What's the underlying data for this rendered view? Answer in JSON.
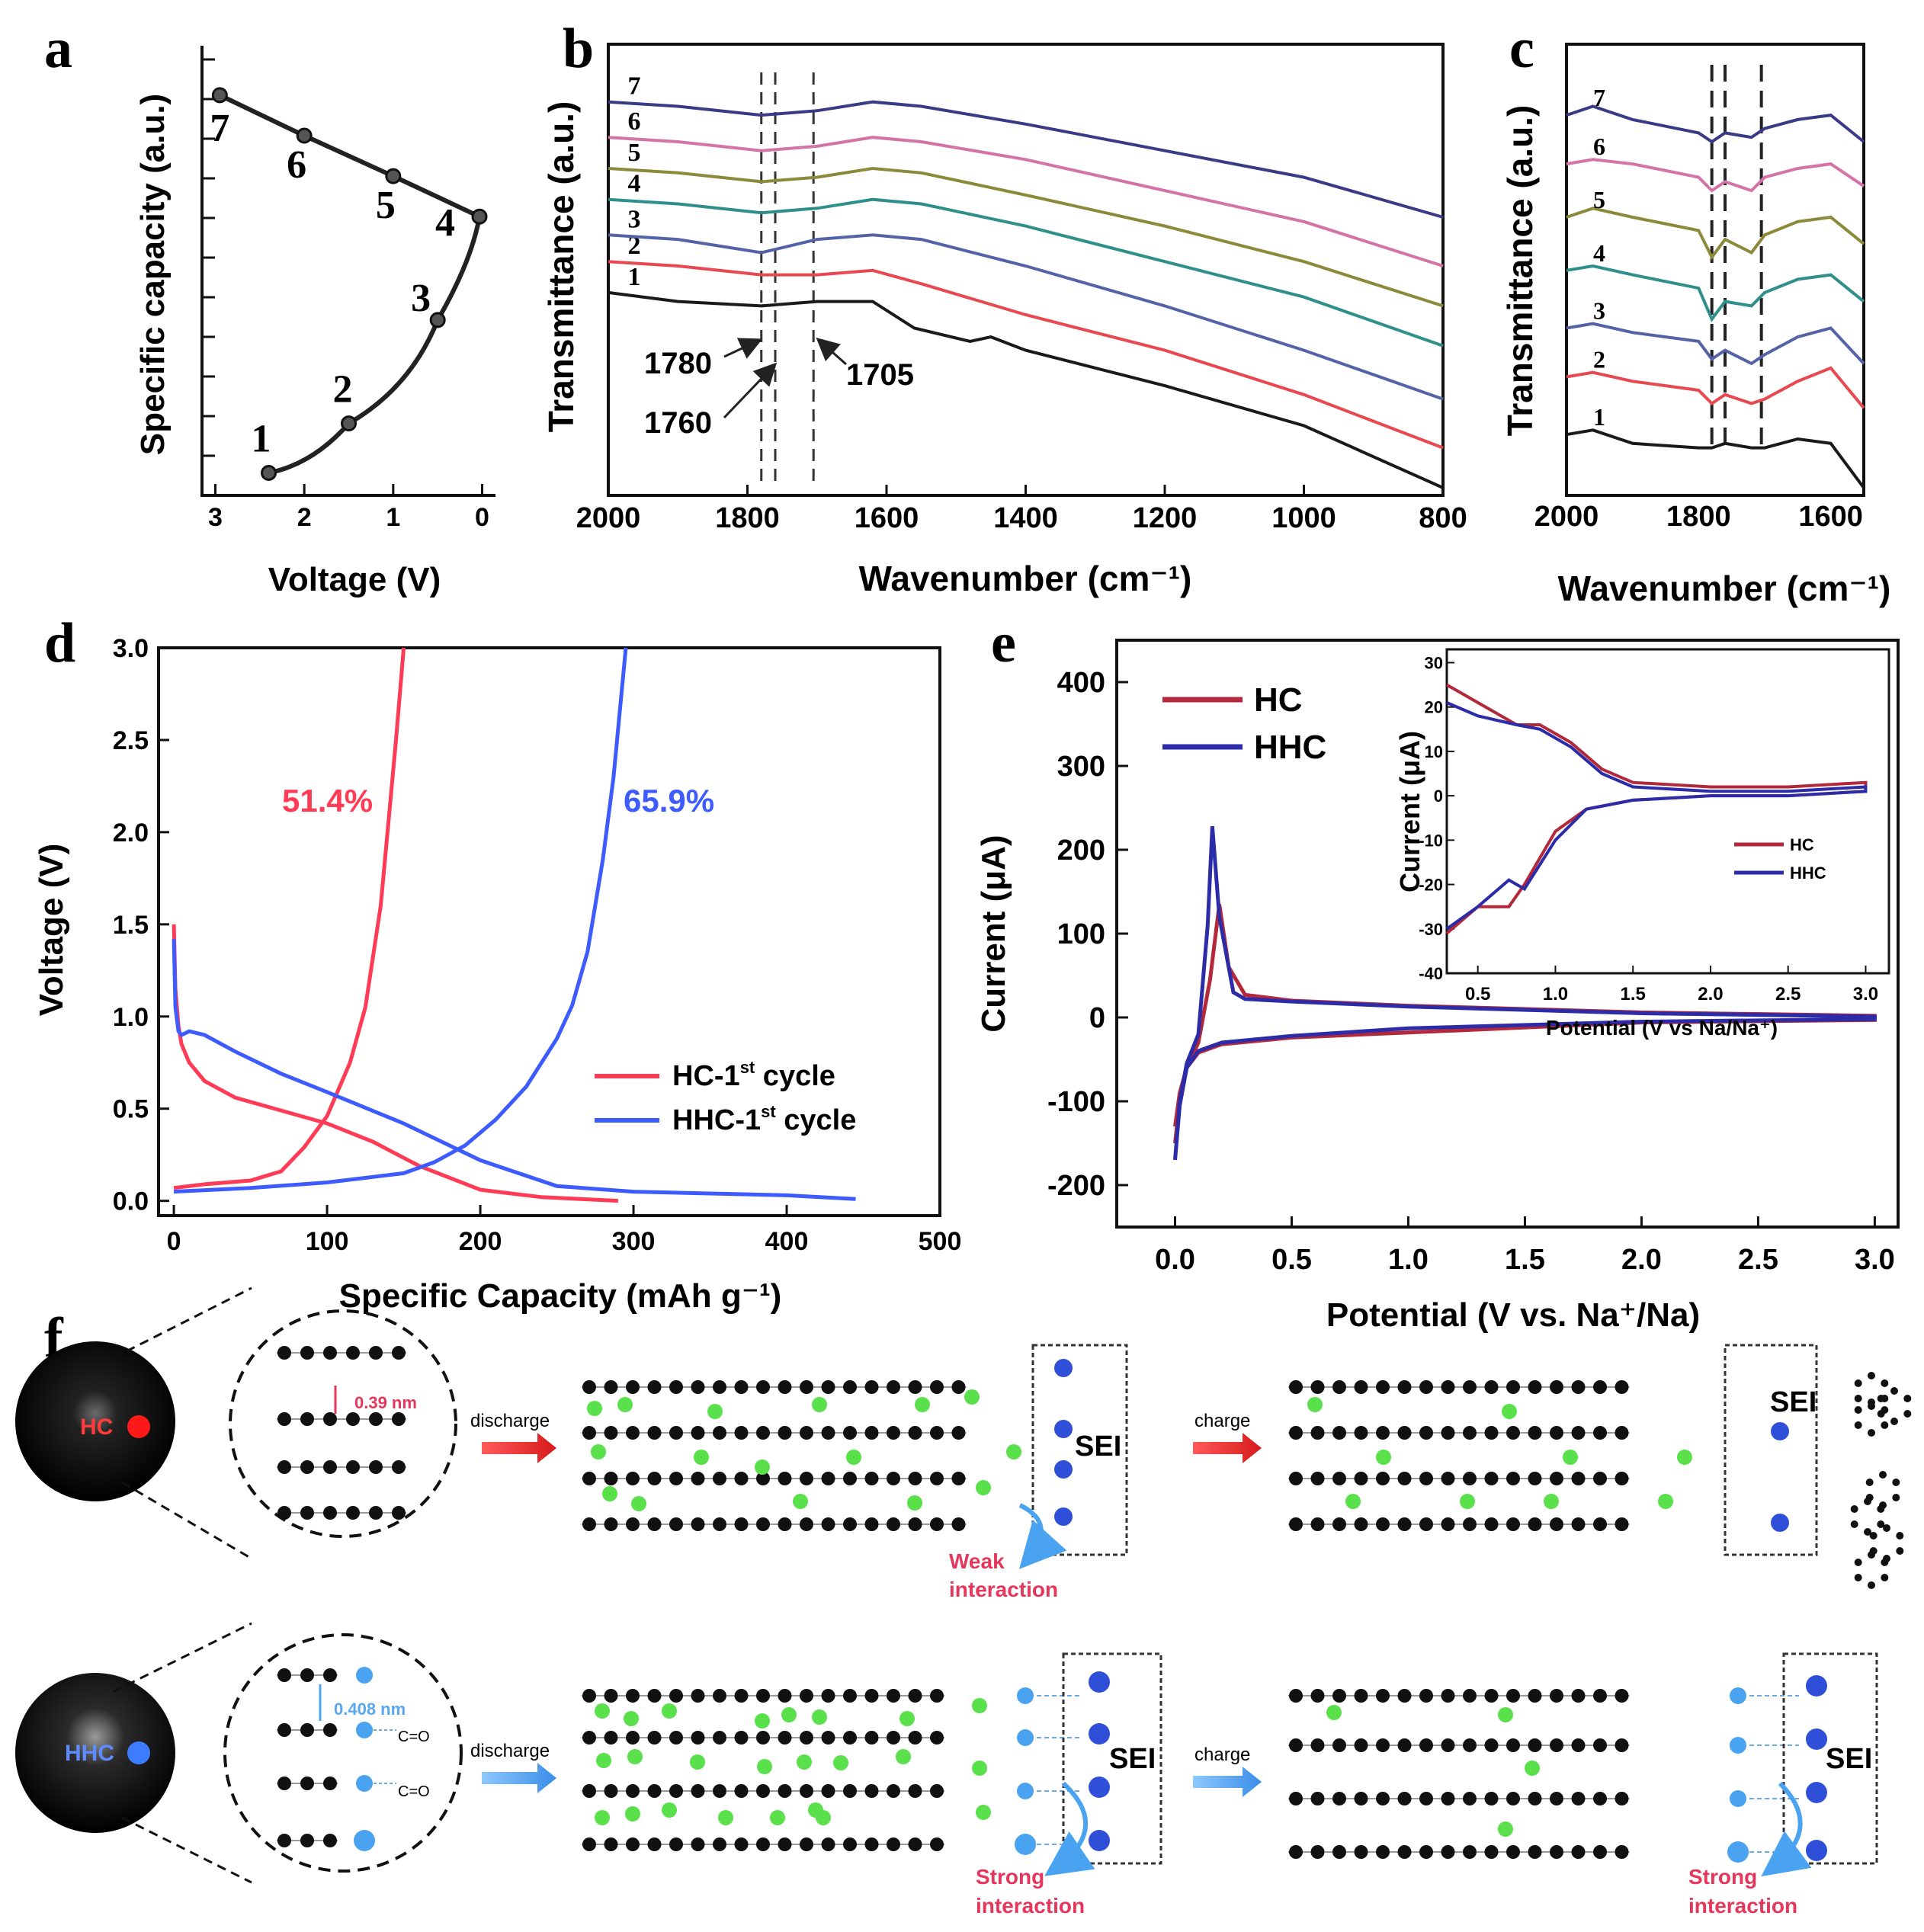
{
  "panel_labels": [
    "a",
    "b",
    "c",
    "d",
    "e",
    "f"
  ],
  "colors": {
    "black": "#1a1a1a",
    "red": "#e8484f",
    "blue": "#5463a8",
    "olive": "#8b8a3a",
    "teal": "#2f8f8a",
    "pink": "#d474a6",
    "navy": "#3a3a86",
    "hc_red": "#ff3b55",
    "hhc_blue": "#3d5bff",
    "cv_red": "#b3283a",
    "cv_blue": "#2c2ca8",
    "green": "#59e04a",
    "sei_blue": "#2f4fd8",
    "light_blue": "#49a3f0"
  },
  "chart_data": [
    {
      "id": "a",
      "type": "line",
      "title": "",
      "xlabel": "Voltage (V)",
      "ylabel": "Specific capacity (a.u.)",
      "xlim": [
        3.15,
        -0.15
      ],
      "ylim": [
        0,
        1
      ],
      "xticks": [
        3,
        2,
        1,
        0
      ],
      "xtick_labels": [
        "3",
        "2",
        "1",
        "0"
      ],
      "points": [
        {
          "label": "1",
          "x": 2.4,
          "y": 0.05
        },
        {
          "label": "2",
          "x": 1.5,
          "y": 0.16
        },
        {
          "label": "3",
          "x": 0.5,
          "y": 0.39
        },
        {
          "label": "4",
          "x": 0.03,
          "y": 0.62
        },
        {
          "label": "5",
          "x": 1.0,
          "y": 0.71
        },
        {
          "label": "6",
          "x": 2.0,
          "y": 0.8
        },
        {
          "label": "7",
          "x": 2.95,
          "y": 0.89
        }
      ]
    },
    {
      "id": "b",
      "type": "line",
      "xlabel": "Wavenumber (cm⁻¹)",
      "ylabel": "Transmittance (a.u.)",
      "xlim": [
        2000,
        800
      ],
      "ylim": [
        0,
        1
      ],
      "xticks": [
        2000,
        1800,
        1600,
        1400,
        1200,
        1000,
        800
      ],
      "xtick_labels": [
        "2000",
        "1800",
        "1600",
        "1400",
        "1200",
        "1000",
        "800"
      ],
      "vlines": [
        1780,
        1760,
        1705
      ],
      "annotations": [
        "1780",
        "1760",
        "1705"
      ],
      "series": [
        {
          "name": "1",
          "x": [
            2000,
            1900,
            1780,
            1700,
            1620,
            1560,
            1480,
            1450,
            1400,
            1200,
            1000,
            800
          ],
          "y": [
            0.44,
            0.42,
            0.41,
            0.42,
            0.42,
            0.36,
            0.33,
            0.34,
            0.31,
            0.23,
            0.14,
            0.0
          ]
        },
        {
          "name": "2",
          "x": [
            2000,
            1900,
            1780,
            1700,
            1620,
            1550,
            1400,
            1200,
            1000,
            800
          ],
          "y": [
            0.51,
            0.5,
            0.48,
            0.48,
            0.49,
            0.46,
            0.39,
            0.31,
            0.21,
            0.09
          ]
        },
        {
          "name": "3",
          "x": [
            2000,
            1900,
            1780,
            1700,
            1620,
            1550,
            1400,
            1200,
            1000,
            800
          ],
          "y": [
            0.57,
            0.56,
            0.53,
            0.56,
            0.57,
            0.56,
            0.5,
            0.41,
            0.31,
            0.2
          ]
        },
        {
          "name": "4",
          "x": [
            2000,
            1900,
            1780,
            1700,
            1620,
            1550,
            1400,
            1200,
            1000,
            800
          ],
          "y": [
            0.65,
            0.64,
            0.62,
            0.63,
            0.65,
            0.64,
            0.59,
            0.51,
            0.43,
            0.32
          ]
        },
        {
          "name": "5",
          "x": [
            2000,
            1900,
            1780,
            1700,
            1620,
            1550,
            1400,
            1200,
            1000,
            800
          ],
          "y": [
            0.72,
            0.71,
            0.69,
            0.7,
            0.72,
            0.71,
            0.66,
            0.59,
            0.51,
            0.41
          ]
        },
        {
          "name": "6",
          "x": [
            2000,
            1900,
            1780,
            1700,
            1620,
            1550,
            1400,
            1200,
            1000,
            800
          ],
          "y": [
            0.79,
            0.78,
            0.76,
            0.77,
            0.79,
            0.78,
            0.74,
            0.67,
            0.6,
            0.5
          ]
        },
        {
          "name": "7",
          "x": [
            2000,
            1900,
            1780,
            1700,
            1620,
            1550,
            1400,
            1200,
            1000,
            800
          ],
          "y": [
            0.87,
            0.86,
            0.84,
            0.85,
            0.87,
            0.86,
            0.82,
            0.76,
            0.7,
            0.61
          ]
        }
      ]
    },
    {
      "id": "c",
      "type": "line",
      "xlabel": "Wavenumber (cm⁻¹)",
      "ylabel": "Transmittance (a.u.)",
      "xlim": [
        2000,
        1550
      ],
      "ylim": [
        0,
        1
      ],
      "xticks": [
        2000,
        1800,
        1600
      ],
      "xtick_labels": [
        "2000",
        "1800",
        "1600"
      ],
      "vlines": [
        1780,
        1760,
        1705
      ],
      "series": [
        {
          "name": "1",
          "x": [
            2000,
            1960,
            1900,
            1800,
            1780,
            1760,
            1720,
            1700,
            1650,
            1600,
            1550
          ],
          "y": [
            0.12,
            0.13,
            0.1,
            0.09,
            0.09,
            0.1,
            0.09,
            0.09,
            0.11,
            0.1,
            0.0
          ]
        },
        {
          "name": "2",
          "x": [
            2000,
            1960,
            1900,
            1800,
            1780,
            1760,
            1720,
            1700,
            1650,
            1600,
            1550
          ],
          "y": [
            0.25,
            0.26,
            0.24,
            0.22,
            0.19,
            0.21,
            0.19,
            0.2,
            0.24,
            0.27,
            0.18
          ]
        },
        {
          "name": "3",
          "x": [
            2000,
            1960,
            1900,
            1800,
            1780,
            1760,
            1720,
            1700,
            1650,
            1600,
            1550
          ],
          "y": [
            0.36,
            0.37,
            0.35,
            0.33,
            0.29,
            0.31,
            0.28,
            0.3,
            0.34,
            0.36,
            0.28
          ]
        },
        {
          "name": "4",
          "x": [
            2000,
            1960,
            1900,
            1800,
            1780,
            1760,
            1720,
            1700,
            1650,
            1600,
            1550
          ],
          "y": [
            0.49,
            0.5,
            0.48,
            0.45,
            0.38,
            0.42,
            0.41,
            0.44,
            0.47,
            0.48,
            0.42
          ]
        },
        {
          "name": "5",
          "x": [
            2000,
            1960,
            1900,
            1800,
            1780,
            1760,
            1720,
            1700,
            1650,
            1600,
            1550
          ],
          "y": [
            0.61,
            0.63,
            0.61,
            0.58,
            0.52,
            0.56,
            0.53,
            0.57,
            0.6,
            0.61,
            0.55
          ]
        },
        {
          "name": "6",
          "x": [
            2000,
            1960,
            1900,
            1800,
            1780,
            1760,
            1720,
            1700,
            1650,
            1600,
            1550
          ],
          "y": [
            0.73,
            0.74,
            0.73,
            0.7,
            0.67,
            0.69,
            0.67,
            0.7,
            0.72,
            0.73,
            0.68
          ]
        },
        {
          "name": "7",
          "x": [
            2000,
            1960,
            1900,
            1800,
            1780,
            1760,
            1720,
            1700,
            1650,
            1600,
            1550
          ],
          "y": [
            0.84,
            0.86,
            0.83,
            0.8,
            0.78,
            0.8,
            0.79,
            0.81,
            0.83,
            0.84,
            0.78
          ]
        }
      ]
    },
    {
      "id": "d",
      "type": "line",
      "xlabel": "Specific Capacity (mAh g⁻¹)",
      "ylabel": "Voltage (V)",
      "xlim": [
        -10,
        500
      ],
      "ylim": [
        -0.08,
        3.0
      ],
      "xticks": [
        0,
        100,
        200,
        300,
        400,
        500
      ],
      "xtick_labels": [
        "0",
        "100",
        "200",
        "300",
        "400",
        "500"
      ],
      "yticks": [
        0,
        0.5,
        1,
        1.5,
        2,
        2.5,
        3
      ],
      "ytick_labels": [
        "0.0",
        "0.5",
        "1.0",
        "1.5",
        "2.0",
        "2.5",
        "3.0"
      ],
      "annotations": [
        {
          "text": "51.4%",
          "x": 100,
          "y": 2.15,
          "color": "#ff3b55"
        },
        {
          "text": "65.9%",
          "x": 325,
          "y": 2.15,
          "color": "#3d5bff"
        }
      ],
      "legend": [
        {
          "name": "HC-1",
          "sup": "st",
          "suffix": " cycle",
          "color": "#ff3b55"
        },
        {
          "name": "HHC-1",
          "sup": "st",
          "suffix": " cycle",
          "color": "#3d5bff"
        }
      ],
      "legend_position": "center-right",
      "series": [
        {
          "name": "HC discharge",
          "x": [
            0,
            1,
            3,
            5,
            10,
            20,
            40,
            70,
            100,
            130,
            160,
            200,
            240,
            290
          ],
          "y": [
            1.5,
            1.15,
            0.95,
            0.85,
            0.75,
            0.65,
            0.56,
            0.49,
            0.42,
            0.32,
            0.19,
            0.06,
            0.02,
            0.0
          ]
        },
        {
          "name": "HC charge",
          "x": [
            0,
            20,
            50,
            70,
            85,
            100,
            115,
            125,
            135,
            140,
            145,
            150
          ],
          "y": [
            0.07,
            0.09,
            0.11,
            0.16,
            0.29,
            0.46,
            0.75,
            1.05,
            1.6,
            2.05,
            2.5,
            3.0
          ]
        },
        {
          "name": "HHC discharge",
          "x": [
            0,
            1,
            3,
            5,
            10,
            20,
            40,
            70,
            100,
            150,
            200,
            250,
            300,
            350,
            400,
            445
          ],
          "y": [
            1.42,
            1.05,
            0.92,
            0.9,
            0.92,
            0.9,
            0.81,
            0.69,
            0.59,
            0.42,
            0.22,
            0.08,
            0.05,
            0.04,
            0.03,
            0.01
          ]
        },
        {
          "name": "HHC charge",
          "x": [
            0,
            50,
            100,
            150,
            170,
            190,
            210,
            230,
            250,
            260,
            270,
            280,
            287,
            295
          ],
          "y": [
            0.05,
            0.07,
            0.1,
            0.15,
            0.21,
            0.3,
            0.44,
            0.62,
            0.88,
            1.06,
            1.35,
            1.85,
            2.3,
            3.0
          ]
        }
      ]
    },
    {
      "id": "e",
      "type": "line",
      "xlabel": "Potential (V vs. Na⁺/Na)",
      "ylabel": "Current (μA)",
      "xlim": [
        -0.25,
        3.1
      ],
      "ylim": [
        -250,
        450
      ],
      "xticks": [
        0,
        0.5,
        1,
        1.5,
        2,
        2.5,
        3
      ],
      "xtick_labels": [
        "0.0",
        "0.5",
        "1.0",
        "1.5",
        "2.0",
        "2.5",
        "3.0"
      ],
      "yticks": [
        -200,
        -100,
        0,
        100,
        200,
        300,
        400
      ],
      "ytick_labels": [
        "-200",
        "-100",
        "0",
        "100",
        "200",
        "300",
        "400"
      ],
      "legend": [
        {
          "name": "HC",
          "color": "#b3283a"
        },
        {
          "name": "HHC",
          "color": "#2c2ca8"
        }
      ],
      "legend_position": "top-left",
      "series": [
        {
          "name": "HC",
          "x": [
            0,
            0.02,
            0.05,
            0.1,
            0.15,
            0.19,
            0.23,
            0.3,
            0.5,
            1.0,
            2.0,
            3.0,
            3.0,
            2.0,
            1.0,
            0.5,
            0.2,
            0.1,
            0.05,
            0.02,
            0
          ],
          "y": [
            -130,
            -90,
            -60,
            -30,
            45,
            135,
            60,
            27,
            20,
            14,
            6,
            2,
            -3,
            -6,
            -18,
            -24,
            -32,
            -42,
            -60,
            -100,
            -150
          ]
        },
        {
          "name": "HHC",
          "x": [
            0,
            0.02,
            0.05,
            0.1,
            0.14,
            0.16,
            0.19,
            0.25,
            0.3,
            0.5,
            1.0,
            2.0,
            3.0,
            3.0,
            2.0,
            1.0,
            0.5,
            0.2,
            0.1,
            0.05,
            0.02,
            0
          ],
          "y": [
            -170,
            -100,
            -55,
            -20,
            110,
            228,
            120,
            30,
            22,
            19,
            13,
            5,
            1,
            -2,
            -5,
            -13,
            -22,
            -30,
            -40,
            -60,
            -105,
            -170
          ]
        }
      ]
    },
    {
      "id": "e-inset",
      "type": "line",
      "xlabel": "Potential (V vs Na/Na⁺)",
      "ylabel": "Current (μA)",
      "xlim": [
        0.3,
        3.15
      ],
      "ylim": [
        -40,
        33
      ],
      "xticks": [
        0.5,
        1,
        1.5,
        2,
        2.5,
        3
      ],
      "xtick_labels": [
        "0.5",
        "1.0",
        "1.5",
        "2.0",
        "2.5",
        "3.0"
      ],
      "yticks": [
        -40,
        -30,
        -20,
        -10,
        0,
        10,
        20,
        30
      ],
      "ytick_labels": [
        "-40",
        "-30",
        "-20",
        "-10",
        "0",
        "10",
        "20",
        "30"
      ],
      "legend": [
        {
          "name": "HC",
          "color": "#b3283a"
        },
        {
          "name": "HHC",
          "color": "#2c2ca8"
        }
      ],
      "legend_position": "center-right",
      "series": [
        {
          "name": "HC",
          "x": [
            0.3,
            0.5,
            0.75,
            0.9,
            1.1,
            1.3,
            1.5,
            2.0,
            2.5,
            3.0,
            3.0,
            2.5,
            2.0,
            1.5,
            1.2,
            1.0,
            0.8,
            0.7,
            0.5,
            0.3
          ],
          "y": [
            25,
            21,
            16,
            16,
            12,
            6,
            3,
            2,
            2,
            3,
            1,
            0,
            0,
            -1,
            -3,
            -8,
            -20,
            -25,
            -25,
            -31
          ]
        },
        {
          "name": "HHC",
          "x": [
            0.3,
            0.5,
            0.75,
            0.9,
            1.1,
            1.3,
            1.5,
            2.0,
            2.5,
            3.0,
            3.0,
            2.5,
            2.0,
            1.5,
            1.2,
            1.0,
            0.8,
            0.7,
            0.5,
            0.3
          ],
          "y": [
            21,
            18,
            16,
            15,
            11,
            5,
            2,
            1,
            1,
            2,
            1,
            0,
            0,
            -1,
            -3,
            -10,
            -21,
            -19,
            -25,
            -30
          ]
        }
      ]
    }
  ],
  "panel_a_point_labels": [
    "1",
    "2",
    "3",
    "4",
    "5",
    "6",
    "7"
  ],
  "panel_b_annotations": {
    "a1780": "1780",
    "a1760": "1760",
    "a1705": "1705"
  },
  "schematic": {
    "hc_label": "HC",
    "hhc_label": "HHC",
    "spacing_hc": "0.39 nm",
    "spacing_hhc": "0.408 nm",
    "co_label": "C=O",
    "discharge": "discharge",
    "charge": "charge",
    "sei": "SEI",
    "weak": "Weak",
    "strong": "Strong",
    "interaction": "interaction"
  }
}
